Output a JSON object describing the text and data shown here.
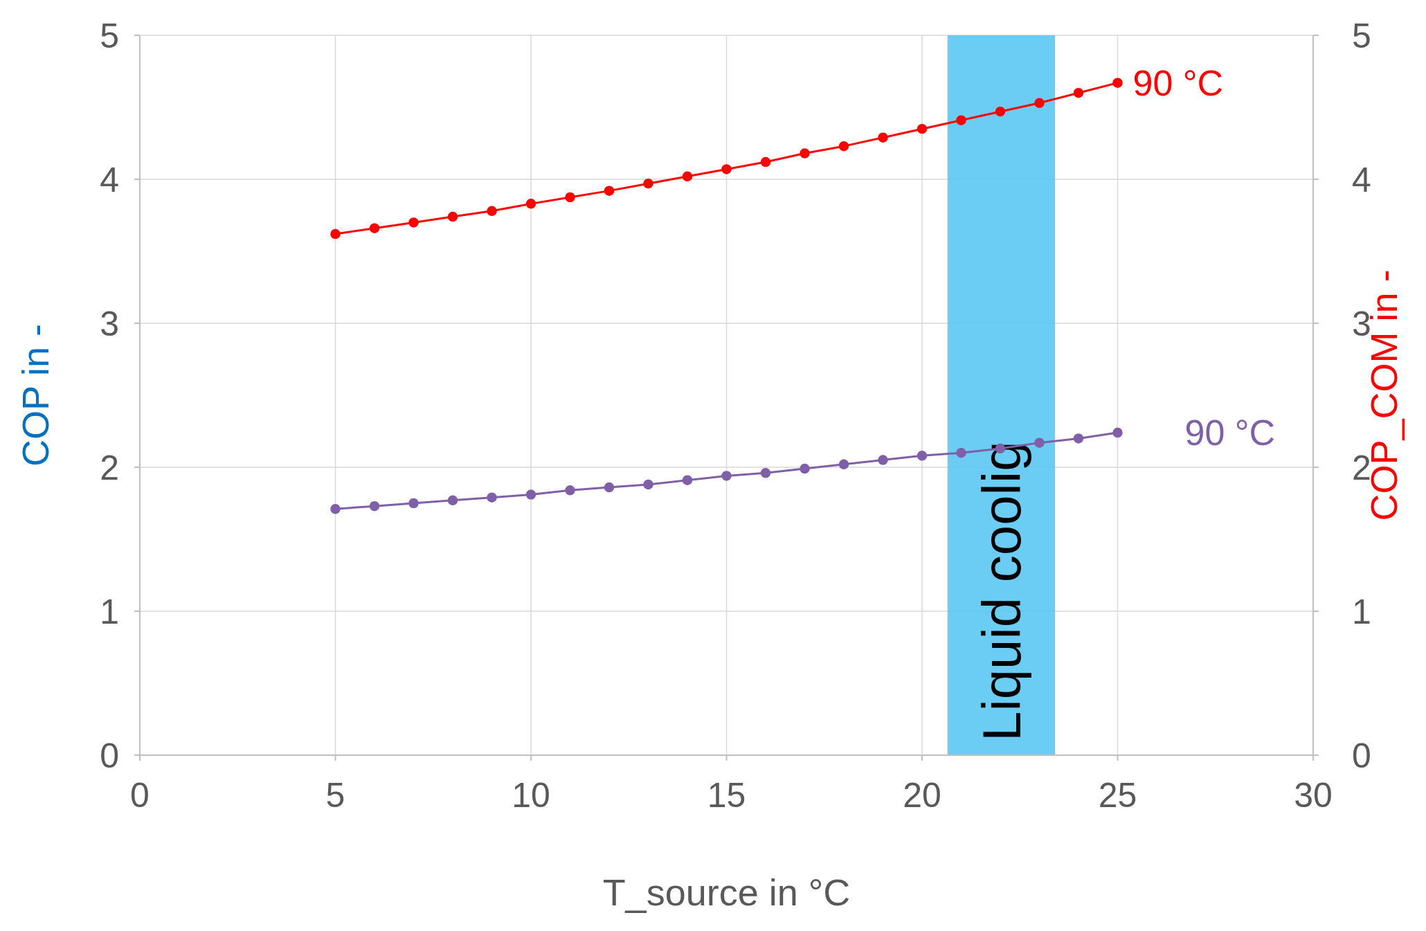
{
  "chart_data": {
    "type": "line",
    "xlabel": "T_source in °C",
    "ylabel": "COP in -",
    "y2label": "COP_COM in -",
    "xlim": [
      0,
      30
    ],
    "xticks": [
      0,
      5,
      10,
      15,
      20,
      25,
      30
    ],
    "ylim": [
      0,
      5
    ],
    "yticks": [
      0,
      1,
      2,
      3,
      4,
      5
    ],
    "y2lim": [
      0,
      5
    ],
    "y2ticks": [
      0,
      1,
      2,
      3,
      4,
      5
    ],
    "grid": true,
    "marker": "circle",
    "line_style": "solid",
    "x": [
      5,
      6,
      7,
      8,
      9,
      10,
      11,
      12,
      13,
      14,
      15,
      16,
      17,
      18,
      19,
      20,
      21,
      22,
      23,
      24,
      25
    ],
    "series": [
      {
        "name": "90 °C",
        "color": "#ff0000",
        "axis": "y2",
        "values": [
          3.62,
          3.66,
          3.7,
          3.74,
          3.78,
          3.83,
          3.875,
          3.92,
          3.97,
          4.02,
          4.07,
          4.12,
          4.18,
          4.23,
          4.29,
          4.35,
          4.41,
          4.47,
          4.53,
          4.6,
          4.67
        ]
      },
      {
        "name": "90 °C",
        "color": "#7f5fa8",
        "axis": "y",
        "values": [
          1.71,
          1.73,
          1.75,
          1.77,
          1.79,
          1.81,
          1.84,
          1.86,
          1.88,
          1.91,
          1.94,
          1.96,
          1.99,
          2.02,
          2.05,
          2.08,
          2.1,
          2.13,
          2.17,
          2.2,
          2.24
        ]
      }
    ],
    "bands": [
      {
        "axis": "x",
        "from": 20.65,
        "to": 23.4,
        "label": "Liquid coolig",
        "color": "#5bc8f2"
      }
    ]
  }
}
